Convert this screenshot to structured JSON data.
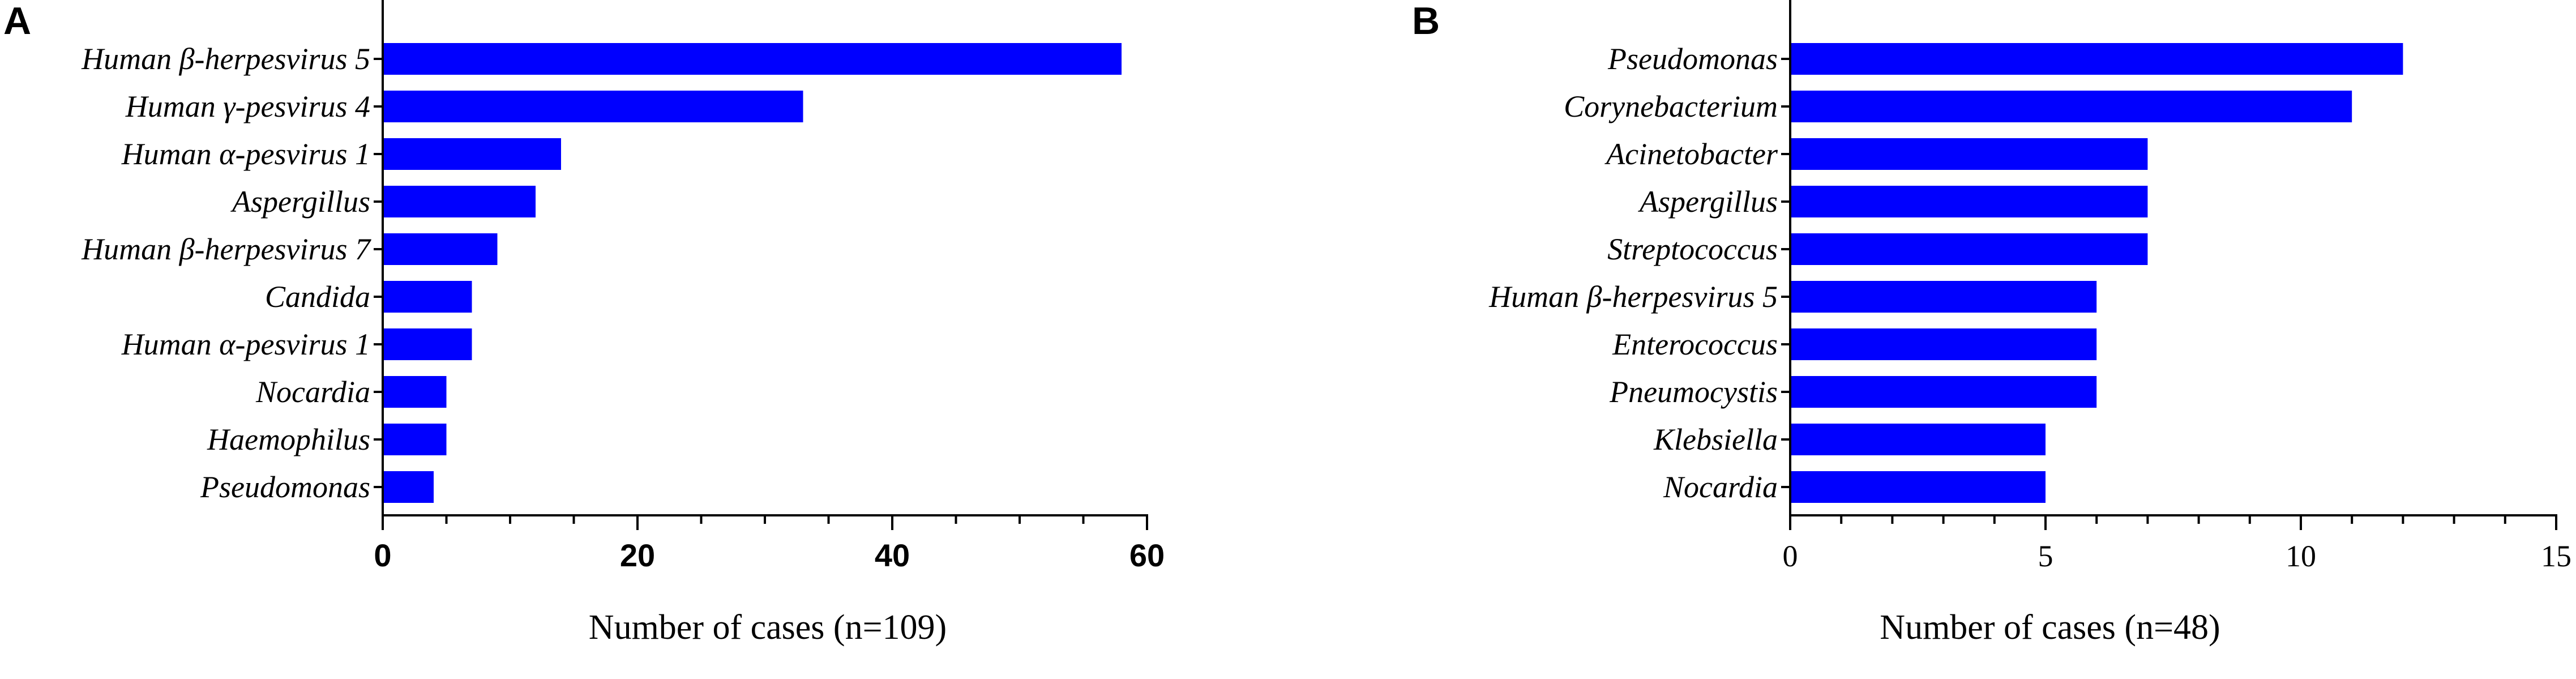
{
  "bar_color": "#0000ff",
  "chart_data": [
    {
      "type": "bar",
      "orientation": "horizontal",
      "panel": "A",
      "title": "",
      "xlabel": "Number of cases (n=109)",
      "ylabel": "",
      "xlim": [
        0,
        60
      ],
      "major_ticks": [
        0,
        20,
        40,
        60
      ],
      "minor_tick_step": 5,
      "grid": false,
      "categories": [
        "Human β-herpesvirus 5",
        "Human γ-pesvirus 4",
        "Human α-pesvirus 1",
        "Aspergillus",
        "Human β-herpesvirus 7",
        "Candida",
        "Human α-pesvirus 1",
        "Nocardia",
        "Haemophilus",
        "Pseudomonas"
      ],
      "values": [
        58,
        33,
        14,
        12,
        9,
        7,
        7,
        5,
        5,
        4
      ]
    },
    {
      "type": "bar",
      "orientation": "horizontal",
      "panel": "B",
      "title": "",
      "xlabel": "Number of cases (n=48)",
      "ylabel": "",
      "xlim": [
        0,
        15
      ],
      "major_ticks": [
        0,
        5,
        10,
        15
      ],
      "minor_tick_step": 1,
      "grid": false,
      "categories": [
        "Pseudomonas",
        "Corynebacterium",
        "Acinetobacter",
        "Aspergillus",
        "Streptococcus",
        "Human β-herpesvirus 5",
        "Enterococcus",
        "Pneumocystis",
        "Klebsiella",
        "Nocardia"
      ],
      "values": [
        12,
        11,
        7,
        7,
        7,
        6,
        6,
        6,
        5,
        5
      ]
    }
  ]
}
